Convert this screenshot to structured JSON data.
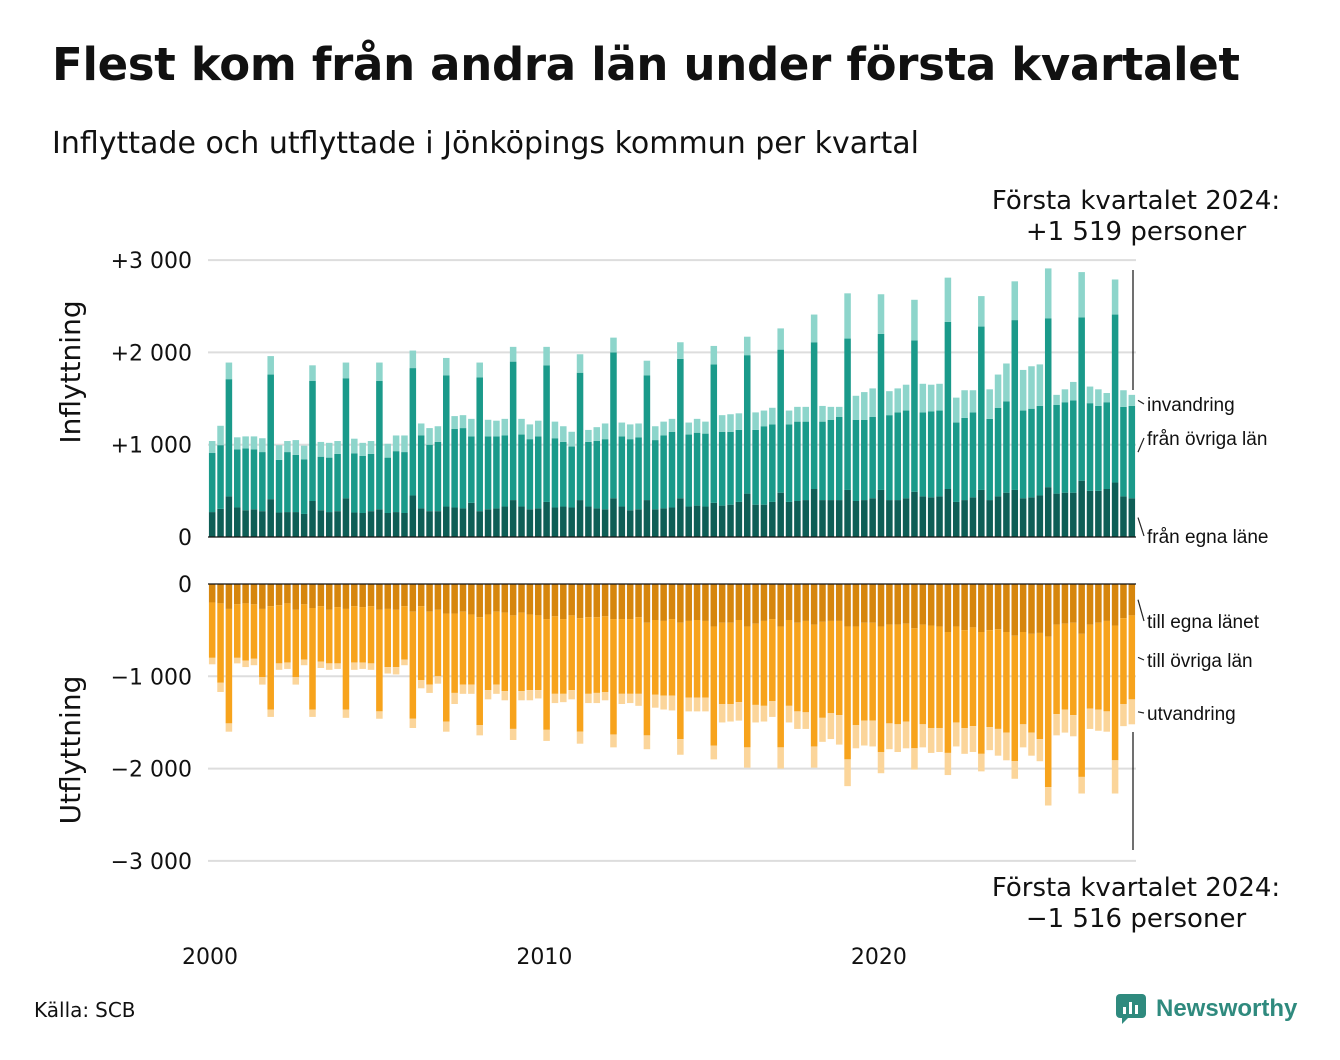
{
  "title": "Flest kom från andra län under första kvartalet",
  "subtitle": "Inflyttade och utflyttade i Jönköpings kommun per kvartal",
  "callout_in": {
    "line1": "Första kvartalet 2024:",
    "line2": "+1 519 personer"
  },
  "callout_out": {
    "line1": "Första kvartalet 2024:",
    "line2": "−1 516 personer"
  },
  "source": {
    "label": "Källa:",
    "value": "SCB"
  },
  "brand": "Newsworthy",
  "colors": {
    "in_local": "#0e5e56",
    "in_other": "#1a9a8a",
    "in_immig": "#8dd5cb",
    "out_local": "#d6860d",
    "out_other": "#f7a31c",
    "out_emig": "#fbd59a",
    "grid": "#dddddd",
    "axis": "#111111",
    "brand": "#2f8a7e"
  },
  "chart_data": [
    {
      "type": "bar",
      "stacked": true,
      "ylabel": "Inflyttning",
      "y_ticks": [
        0,
        1000,
        2000,
        3000
      ],
      "y_tick_labels": [
        "0",
        "+1 000",
        "+2 000",
        "+3 000"
      ],
      "ylim": [
        0,
        3000
      ],
      "x_start": 2000,
      "x_ticks": [
        2000,
        2010,
        2020
      ],
      "grid": true,
      "series": [
        {
          "name": "från egna läne",
          "values": [
            270,
            305,
            440,
            320,
            290,
            300,
            280,
            410,
            265,
            270,
            270,
            250,
            390,
            290,
            270,
            280,
            420,
            265,
            260,
            280,
            300,
            260,
            270,
            260,
            450,
            310,
            280,
            280,
            330,
            320,
            310,
            370,
            280,
            300,
            310,
            330,
            400,
            330,
            300,
            310,
            380,
            320,
            330,
            320,
            400,
            330,
            310,
            300,
            420,
            330,
            290,
            300,
            400,
            300,
            310,
            320,
            420,
            330,
            340,
            330,
            370,
            340,
            350,
            380,
            470,
            350,
            350,
            380,
            480,
            380,
            390,
            400,
            520,
            400,
            400,
            400,
            510,
            390,
            400,
            420,
            510,
            400,
            400,
            420,
            490,
            440,
            430,
            440,
            520,
            380,
            400,
            430,
            510,
            400,
            440,
            480,
            510,
            420,
            430,
            450,
            540,
            470,
            480,
            480,
            610,
            500,
            500,
            520,
            590,
            440,
            420
          ]
        },
        {
          "name": "från övriga län",
          "values": [
            640,
            690,
            1270,
            630,
            670,
            650,
            640,
            1350,
            570,
            650,
            620,
            590,
            1300,
            580,
            590,
            620,
            1300,
            640,
            620,
            620,
            1390,
            600,
            660,
            660,
            1380,
            790,
            720,
            750,
            1420,
            850,
            870,
            720,
            1450,
            790,
            780,
            770,
            1500,
            780,
            760,
            780,
            1480,
            750,
            700,
            660,
            1380,
            700,
            730,
            760,
            1580,
            760,
            770,
            780,
            1350,
            750,
            790,
            820,
            1510,
            780,
            790,
            790,
            1500,
            800,
            790,
            780,
            1500,
            810,
            850,
            840,
            1550,
            840,
            860,
            850,
            1590,
            850,
            870,
            900,
            1640,
            880,
            870,
            880,
            1690,
            920,
            950,
            950,
            1640,
            910,
            930,
            930,
            1810,
            860,
            890,
            920,
            1770,
            880,
            960,
            990,
            1840,
            950,
            960,
            970,
            1830,
            960,
            980,
            1000,
            1770,
            950,
            920,
            940,
            1820,
            970,
            1000
          ]
        },
        {
          "name": "invandring",
          "values": [
            130,
            210,
            180,
            130,
            130,
            140,
            150,
            200,
            160,
            120,
            160,
            150,
            170,
            160,
            160,
            140,
            170,
            160,
            140,
            140,
            200,
            150,
            170,
            180,
            190,
            130,
            180,
            170,
            190,
            140,
            140,
            190,
            160,
            180,
            170,
            180,
            160,
            170,
            160,
            170,
            200,
            180,
            170,
            160,
            200,
            130,
            150,
            170,
            160,
            150,
            160,
            150,
            160,
            150,
            150,
            140,
            180,
            130,
            150,
            130,
            200,
            180,
            190,
            180,
            200,
            190,
            170,
            180,
            230,
            150,
            160,
            160,
            300,
            170,
            140,
            110,
            490,
            260,
            300,
            310,
            430,
            260,
            260,
            280,
            440,
            310,
            290,
            290,
            480,
            270,
            300,
            240,
            330,
            320,
            360,
            410,
            420,
            440,
            460,
            450,
            540,
            110,
            140,
            200,
            490,
            180,
            180,
            100,
            380,
            180,
            120
          ]
        }
      ]
    },
    {
      "type": "bar",
      "stacked": true,
      "ylabel": "Utflyttning",
      "y_ticks": [
        0,
        -1000,
        -2000,
        -3000
      ],
      "y_tick_labels": [
        "0",
        "−1 000",
        "−2 000",
        "−3 000"
      ],
      "ylim": [
        -3000,
        0
      ],
      "x_start": 2000,
      "x_ticks": [
        2000,
        2010,
        2020
      ],
      "grid": true,
      "series": [
        {
          "name": "till egna länet",
          "values": [
            -200,
            -210,
            -270,
            -220,
            -210,
            -220,
            -270,
            -240,
            -230,
            -210,
            -280,
            -220,
            -260,
            -240,
            -280,
            -250,
            -270,
            -240,
            -250,
            -240,
            -280,
            -270,
            -280,
            -240,
            -300,
            -240,
            -300,
            -280,
            -320,
            -320,
            -300,
            -330,
            -360,
            -330,
            -300,
            -310,
            -340,
            -310,
            -330,
            -340,
            -380,
            -350,
            -380,
            -340,
            -370,
            -360,
            -360,
            -350,
            -380,
            -380,
            -380,
            -360,
            -420,
            -390,
            -400,
            -380,
            -420,
            -400,
            -390,
            -400,
            -460,
            -420,
            -420,
            -390,
            -460,
            -430,
            -400,
            -380,
            -460,
            -390,
            -420,
            -400,
            -440,
            -410,
            -400,
            -400,
            -460,
            -460,
            -420,
            -420,
            -460,
            -440,
            -440,
            -430,
            -480,
            -440,
            -450,
            -460,
            -520,
            -460,
            -500,
            -470,
            -520,
            -500,
            -490,
            -520,
            -560,
            -520,
            -540,
            -530,
            -570,
            -440,
            -430,
            -420,
            -540,
            -440,
            -420,
            -400,
            -450,
            -370,
            -340
          ]
        },
        {
          "name": "till övriga län",
          "values": [
            -600,
            -860,
            -1240,
            -580,
            -620,
            -590,
            -740,
            -1120,
            -630,
            -640,
            -730,
            -600,
            -1100,
            -600,
            -580,
            -610,
            -1090,
            -610,
            -600,
            -620,
            -1100,
            -630,
            -620,
            -580,
            -1160,
            -800,
            -790,
            -720,
            -1170,
            -860,
            -790,
            -760,
            -1170,
            -820,
            -790,
            -850,
            -1230,
            -850,
            -820,
            -810,
            -1200,
            -840,
            -810,
            -810,
            -1230,
            -830,
            -820,
            -820,
            -1250,
            -810,
            -810,
            -830,
            -1220,
            -810,
            -810,
            -830,
            -1260,
            -830,
            -840,
            -830,
            -1290,
            -880,
            -880,
            -890,
            -1310,
            -880,
            -920,
            -890,
            -1310,
            -930,
            -960,
            -990,
            -1320,
            -1040,
            -1000,
            -1020,
            -1440,
            -1070,
            -1060,
            -1060,
            -1360,
            -1070,
            -1080,
            -1060,
            -1300,
            -1080,
            -1110,
            -1100,
            -1310,
            -1040,
            -1060,
            -1070,
            -1320,
            -1050,
            -1080,
            -1090,
            -1360,
            -1000,
            -1070,
            -1150,
            -1630,
            -970,
            -930,
            -1000,
            -1550,
            -910,
            -940,
            -980,
            -1460,
            -930,
            -910
          ]
        },
        {
          "name": "utvandring",
          "values": [
            -70,
            -100,
            -90,
            -60,
            -70,
            -70,
            -80,
            -80,
            -70,
            -70,
            -80,
            -60,
            -80,
            -70,
            -70,
            -60,
            -90,
            -80,
            -70,
            -70,
            -80,
            -70,
            -80,
            -60,
            -100,
            -90,
            -90,
            -80,
            -110,
            -120,
            -100,
            -100,
            -110,
            -100,
            -100,
            -100,
            -120,
            -100,
            -110,
            -90,
            -120,
            -100,
            -90,
            -100,
            -130,
            -100,
            -110,
            -90,
            -140,
            -110,
            -100,
            -130,
            -150,
            -140,
            -150,
            -160,
            -170,
            -150,
            -150,
            -150,
            -150,
            -200,
            -190,
            -200,
            -220,
            -190,
            -170,
            -170,
            -230,
            -180,
            -190,
            -180,
            -230,
            -260,
            -280,
            -320,
            -290,
            -250,
            -270,
            -280,
            -230,
            -280,
            -300,
            -290,
            -230,
            -250,
            -270,
            -260,
            -240,
            -260,
            -280,
            -280,
            -190,
            -250,
            -290,
            -300,
            -190,
            -250,
            -250,
            -240,
            -200,
            -230,
            -250,
            -230,
            -180,
            -220,
            -230,
            -220,
            -360,
            -240,
            -270
          ]
        }
      ]
    }
  ]
}
